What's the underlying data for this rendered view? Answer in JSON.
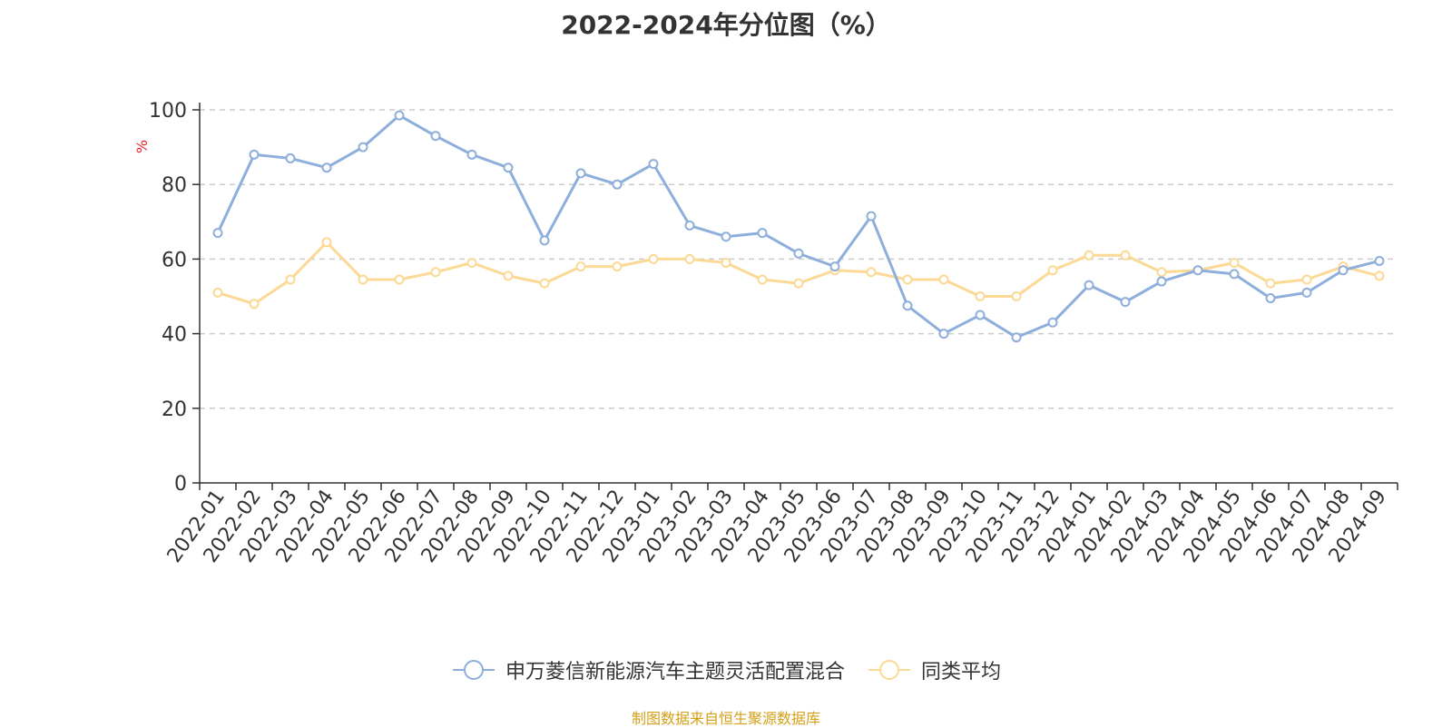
{
  "chart_data": {
    "type": "line",
    "title": "2022-2024年分位图（%）",
    "ylabel": "%",
    "ylim": [
      0,
      100
    ],
    "yticks": [
      0,
      20,
      40,
      60,
      80,
      100
    ],
    "grid": true,
    "legend_position": "bottom",
    "categories": [
      "2022-01",
      "2022-02",
      "2022-03",
      "2022-04",
      "2022-05",
      "2022-06",
      "2022-07",
      "2022-08",
      "2022-09",
      "2022-10",
      "2022-11",
      "2022-12",
      "2023-01",
      "2023-02",
      "2023-03",
      "2023-04",
      "2023-05",
      "2023-06",
      "2023-07",
      "2023-08",
      "2023-09",
      "2023-10",
      "2023-11",
      "2023-12",
      "2024-01",
      "2024-02",
      "2024-03",
      "2024-04",
      "2024-05",
      "2024-06",
      "2024-07",
      "2024-08",
      "2024-09"
    ],
    "series": [
      {
        "name": "申万菱信新能源汽车主题灵活配置混合",
        "color": "#8eaedb",
        "values": [
          67,
          88,
          87,
          84.5,
          90,
          98.5,
          93,
          88,
          84.5,
          65,
          83,
          80,
          85.5,
          69,
          66,
          67,
          61.5,
          58,
          71.5,
          47.5,
          40,
          45,
          39,
          43,
          53,
          48.5,
          54,
          57,
          56,
          49.5,
          51,
          57,
          59.5
        ]
      },
      {
        "name": "同类平均",
        "color": "#fcd994",
        "values": [
          51,
          48,
          54.5,
          64.5,
          54.5,
          54.5,
          56.5,
          59,
          55.5,
          53.5,
          58,
          58,
          60,
          60,
          59,
          54.5,
          53.5,
          57,
          56.5,
          54.5,
          54.5,
          50,
          50,
          57,
          61,
          61,
          56.5,
          57,
          59,
          53.5,
          54.5,
          58,
          55.5
        ]
      }
    ]
  },
  "source": "制图数据来自恒生聚源数据库"
}
